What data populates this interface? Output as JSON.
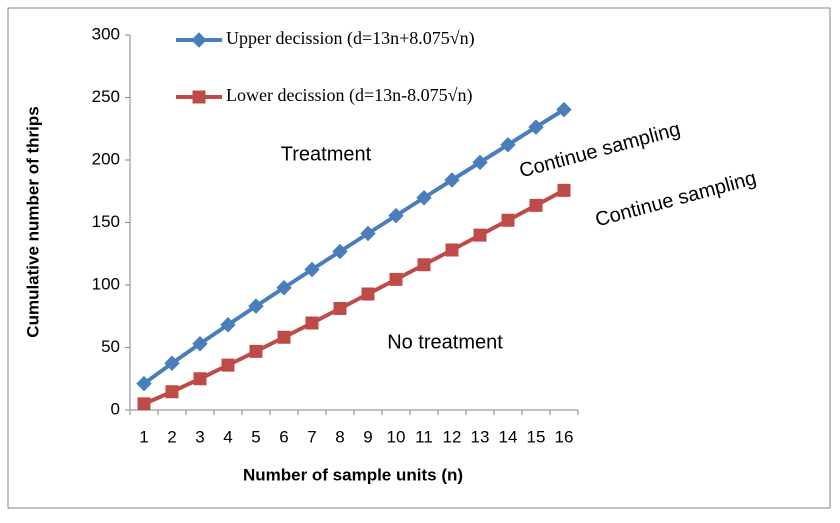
{
  "chart_data": {
    "type": "line",
    "x_label": "Number of sample units (n)",
    "y_label": "Cumulative number of thrips",
    "categories": [
      1,
      2,
      3,
      4,
      5,
      6,
      7,
      8,
      9,
      10,
      11,
      12,
      13,
      14,
      15,
      16
    ],
    "series": [
      {
        "name": "Upper decission (d=13n+8.075√n)",
        "color": "#4a7ebb",
        "marker": "diamond",
        "values": [
          21.1,
          37.4,
          53.0,
          68.2,
          83.1,
          97.8,
          112.4,
          126.8,
          141.2,
          155.5,
          169.8,
          184.0,
          198.1,
          212.2,
          226.3,
          240.3
        ]
      },
      {
        "name": "Lower decission (d=13n-8.075√n)",
        "color": "#be4b48",
        "marker": "square",
        "values": [
          4.9,
          14.6,
          25.0,
          35.9,
          46.9,
          58.2,
          69.6,
          81.2,
          92.8,
          104.5,
          116.2,
          128.0,
          139.9,
          151.8,
          163.7,
          175.7
        ]
      }
    ],
    "ylim": [
      0,
      300
    ],
    "yticks": [
      0,
      50,
      100,
      150,
      200,
      250,
      300
    ],
    "grid": false,
    "annotations": [
      "Treatment",
      "Continue sampling",
      "Continue sampling",
      "No treatment"
    ]
  }
}
